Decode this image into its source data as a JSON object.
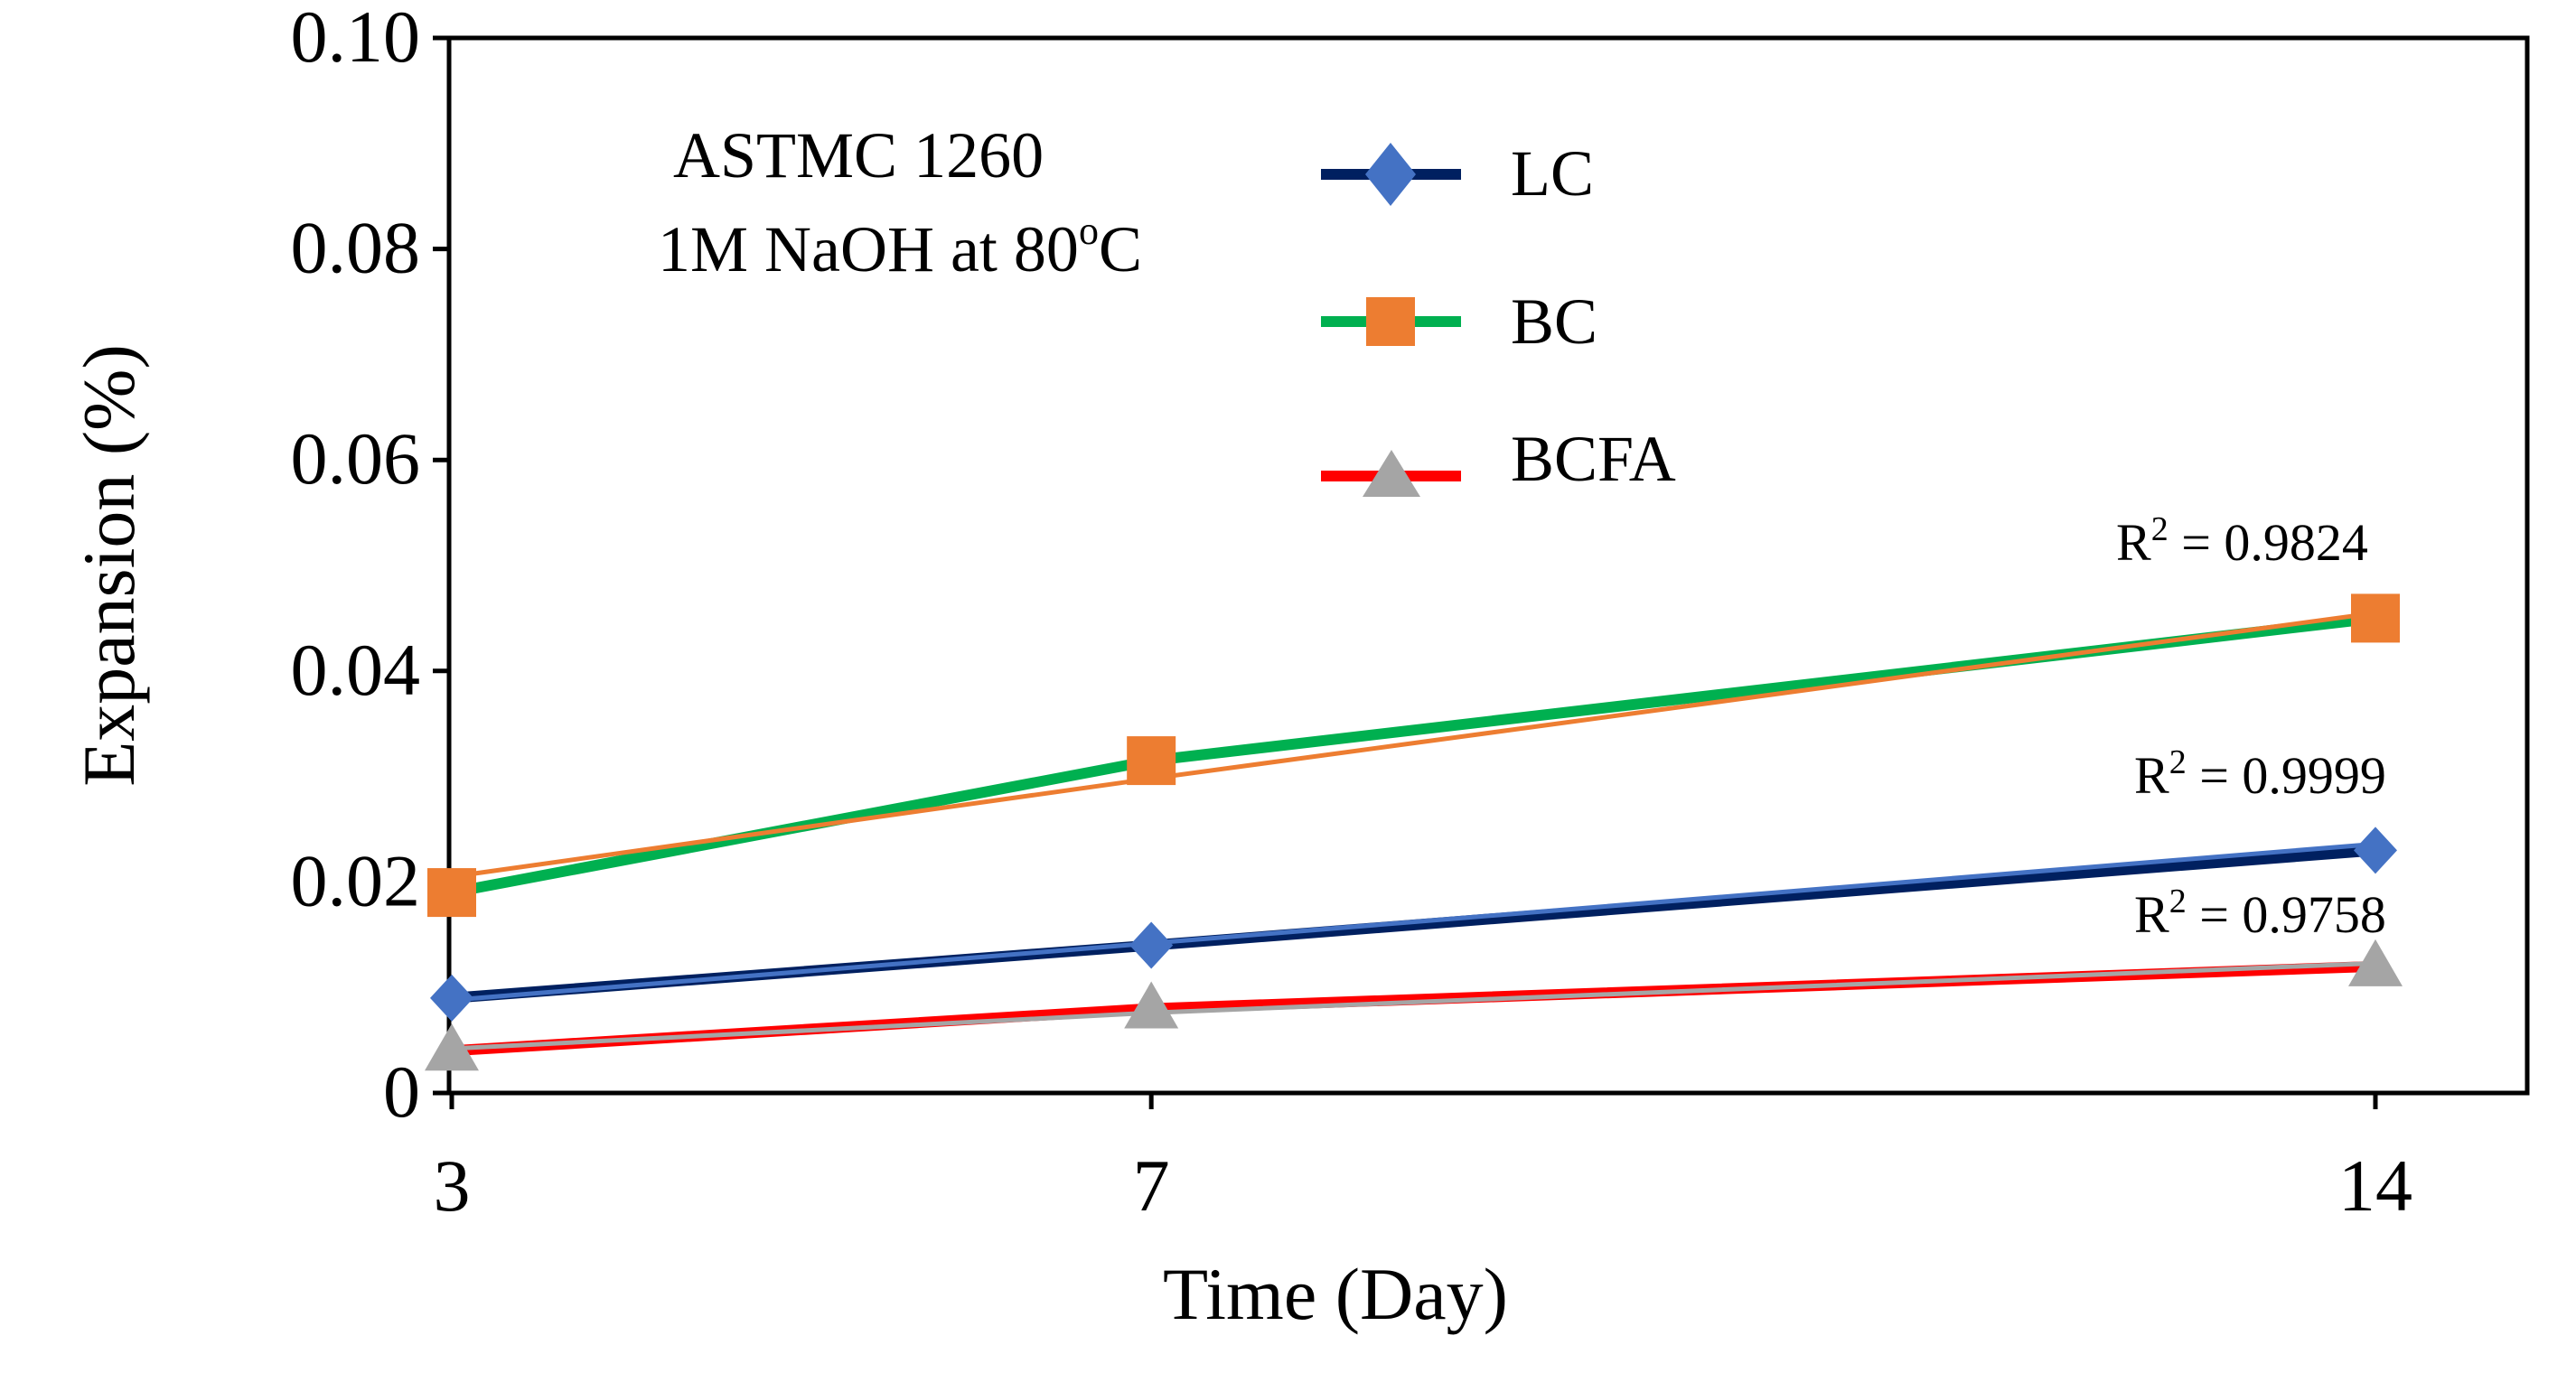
{
  "chart_data": {
    "type": "line",
    "xlabel": "Time (Day)",
    "ylabel": "Expansion (%)",
    "x_ticks": [
      3,
      7,
      14
    ],
    "y_ticks": [
      "0",
      "0.02",
      "0.04",
      "0.06",
      "0.08",
      "0.10"
    ],
    "y_tick_values": [
      0,
      0.02,
      0.04,
      0.06,
      0.08,
      0.1
    ],
    "xlim": [
      3,
      14.1
    ],
    "ylim": [
      0,
      0.1
    ],
    "grid": false,
    "legend_position": "top-center",
    "annotation": {
      "line1": "ASTMC 1260",
      "line2_main": "1M NaOH at 80",
      "line2_sup": "o",
      "line2_end": "C"
    },
    "series": [
      {
        "name": "LC",
        "x": [
          3,
          7,
          14
        ],
        "values": [
          0.009,
          0.014,
          0.023
        ],
        "trend_values": [
          0.0088,
          0.0142,
          0.0236
        ],
        "marker": "diamond",
        "line_color": "#002060",
        "marker_color": "#4472C4",
        "trend_color": "#4472C4",
        "r2_prefix": "R",
        "r2_sup": "2",
        "r2_value": " = 0.9999"
      },
      {
        "name": "BC",
        "x": [
          3,
          7,
          14
        ],
        "values": [
          0.019,
          0.0315,
          0.045
        ],
        "trend_values": [
          0.0205,
          0.0298,
          0.0455
        ],
        "marker": "square",
        "line_color": "#00B050",
        "marker_color": "#ED7D31",
        "trend_color": "#ED7D31",
        "r2_prefix": "R",
        "r2_sup": "2",
        "r2_value": " = 0.9824"
      },
      {
        "name": "BCFA",
        "x": [
          3,
          7,
          14
        ],
        "values": [
          0.004,
          0.008,
          0.012
        ],
        "trend_values": [
          0.0042,
          0.0076,
          0.0123
        ],
        "marker": "triangle",
        "line_color": "#FF0000",
        "marker_color": "#A5A5A5",
        "trend_color": "#A5A5A5",
        "r2_prefix": "R",
        "r2_sup": "2",
        "r2_value": " = 0.9758"
      }
    ]
  }
}
